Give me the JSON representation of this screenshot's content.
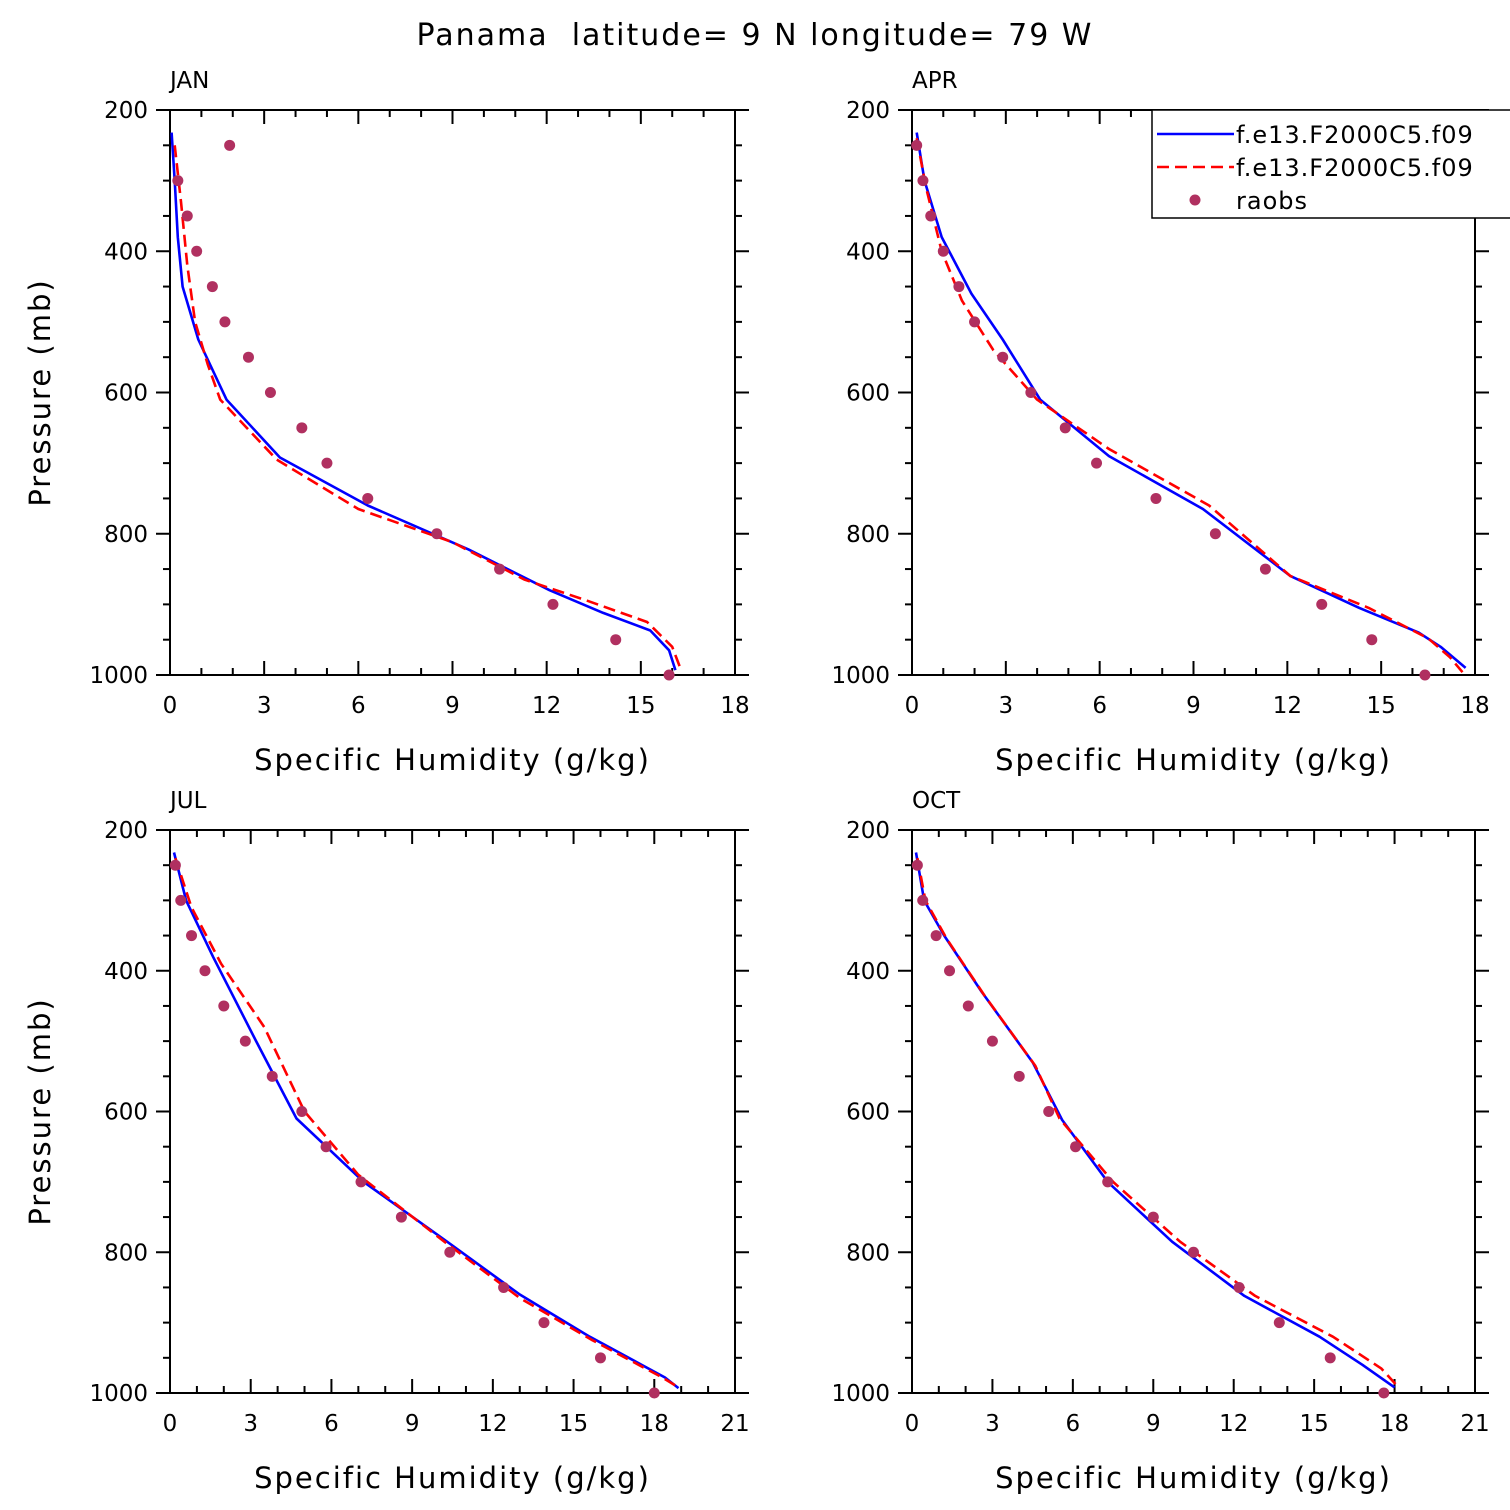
{
  "page": {
    "title": "Panama  latitude= 9 N longitude= 79 W"
  },
  "legend": {
    "placement": "top-right of APR panel",
    "entries": [
      {
        "label": "f.e13.F2000C5.f09",
        "color": "#0000ff",
        "style": "solid"
      },
      {
        "label": "f.e13.F2000C5.f09",
        "color": "#ff0000",
        "style": "dashed"
      },
      {
        "label": "raobs",
        "color": "#b03060",
        "style": "dot"
      }
    ]
  },
  "chart_data": [
    {
      "type": "line",
      "title": "JAN",
      "xlabel": "Specific Humidity (g/kg)",
      "ylabel": "Pressure (mb)",
      "xlim": [
        0,
        18
      ],
      "ylim": [
        1000,
        200
      ],
      "y_inverted": true,
      "xticks": [
        0,
        3,
        6,
        9,
        12,
        15,
        18
      ],
      "yticks": [
        200,
        400,
        600,
        800,
        1000
      ],
      "series": [
        {
          "name": "f.e13.F2000C5.f09",
          "color": "#0000ff",
          "style": "solid",
          "points": [
            [
              0.05,
              232
            ],
            [
              0.15,
              300
            ],
            [
              0.25,
              380
            ],
            [
              0.4,
              450
            ],
            [
              0.9,
              525
            ],
            [
              1.8,
              610
            ],
            [
              3.5,
              692
            ],
            [
              6.3,
              760
            ],
            [
              9.5,
              822
            ],
            [
              12.1,
              880
            ],
            [
              13.8,
              912
            ],
            [
              15.3,
              937
            ],
            [
              15.9,
              965
            ],
            [
              16.1,
              993
            ]
          ]
        },
        {
          "name": "f.e13.F2000C5.f09",
          "color": "#ff0000",
          "style": "dashed",
          "points": [
            [
              0.15,
              250
            ],
            [
              0.35,
              330
            ],
            [
              0.55,
              420
            ],
            [
              0.8,
              500
            ],
            [
              1.2,
              560
            ],
            [
              1.6,
              610
            ],
            [
              3.4,
              695
            ],
            [
              6.0,
              765
            ],
            [
              9.0,
              812
            ],
            [
              11.3,
              865
            ],
            [
              13.3,
              895
            ],
            [
              15.2,
              925
            ],
            [
              16.0,
              960
            ],
            [
              16.3,
              995
            ]
          ]
        },
        {
          "name": "raobs",
          "color": "#b03060",
          "style": "dot",
          "points": [
            [
              1.9,
              250
            ],
            [
              0.25,
              300
            ],
            [
              0.55,
              350
            ],
            [
              0.85,
              400
            ],
            [
              1.35,
              450
            ],
            [
              1.75,
              500
            ],
            [
              2.5,
              550
            ],
            [
              3.2,
              600
            ],
            [
              4.2,
              650
            ],
            [
              5.0,
              700
            ],
            [
              6.3,
              750
            ],
            [
              8.5,
              800
            ],
            [
              10.5,
              850
            ],
            [
              12.2,
              900
            ],
            [
              14.2,
              950
            ],
            [
              15.9,
              1000
            ]
          ]
        }
      ]
    },
    {
      "type": "line",
      "title": "APR",
      "xlabel": "Specific Humidity (g/kg)",
      "ylabel": "",
      "xlim": [
        0,
        18
      ],
      "ylim": [
        1000,
        200
      ],
      "y_inverted": true,
      "xticks": [
        0,
        3,
        6,
        9,
        12,
        15,
        18
      ],
      "yticks": [
        200,
        400,
        600,
        800,
        1000
      ],
      "series": [
        {
          "name": "f.e13.F2000C5.f09",
          "color": "#0000ff",
          "style": "solid",
          "points": [
            [
              0.15,
              232
            ],
            [
              0.4,
              300
            ],
            [
              0.95,
              380
            ],
            [
              1.9,
              460
            ],
            [
              2.9,
              525
            ],
            [
              4.1,
              610
            ],
            [
              6.3,
              690
            ],
            [
              9.3,
              765
            ],
            [
              12.1,
              860
            ],
            [
              14.3,
              905
            ],
            [
              16.2,
              940
            ],
            [
              16.9,
              960
            ],
            [
              17.7,
              990
            ]
          ]
        },
        {
          "name": "f.e13.F2000C5.f09",
          "color": "#ff0000",
          "style": "dashed",
          "points": [
            [
              0.15,
              240
            ],
            [
              0.45,
              310
            ],
            [
              0.95,
              400
            ],
            [
              1.6,
              470
            ],
            [
              2.6,
              540
            ],
            [
              4.0,
              610
            ],
            [
              6.3,
              680
            ],
            [
              9.5,
              760
            ],
            [
              12.1,
              860
            ],
            [
              14.6,
              905
            ],
            [
              16.5,
              948
            ],
            [
              17.2,
              975
            ],
            [
              17.6,
              996
            ]
          ]
        },
        {
          "name": "raobs",
          "color": "#b03060",
          "style": "dot",
          "points": [
            [
              0.15,
              250
            ],
            [
              0.35,
              300
            ],
            [
              0.6,
              350
            ],
            [
              1.0,
              400
            ],
            [
              1.5,
              450
            ],
            [
              2.0,
              500
            ],
            [
              2.9,
              550
            ],
            [
              3.8,
              600
            ],
            [
              4.9,
              650
            ],
            [
              5.9,
              700
            ],
            [
              7.8,
              750
            ],
            [
              9.7,
              800
            ],
            [
              11.3,
              850
            ],
            [
              13.1,
              900
            ],
            [
              14.7,
              950
            ],
            [
              16.4,
              1000
            ]
          ]
        }
      ]
    },
    {
      "type": "line",
      "title": "JUL",
      "xlabel": "Specific Humidity (g/kg)",
      "ylabel": "Pressure (mb)",
      "xlim": [
        0,
        21
      ],
      "ylim": [
        1000,
        200
      ],
      "y_inverted": true,
      "xticks": [
        0,
        3,
        6,
        9,
        12,
        15,
        18,
        21
      ],
      "yticks": [
        200,
        400,
        600,
        800,
        1000
      ],
      "series": [
        {
          "name": "f.e13.F2000C5.f09",
          "color": "#0000ff",
          "style": "solid",
          "points": [
            [
              0.15,
              232
            ],
            [
              0.6,
              300
            ],
            [
              1.6,
              380
            ],
            [
              3.2,
              500
            ],
            [
              4.7,
              610
            ],
            [
              7.2,
              700
            ],
            [
              10.3,
              785
            ],
            [
              13.0,
              860
            ],
            [
              15.6,
              920
            ],
            [
              18.4,
              978
            ],
            [
              18.9,
              993
            ]
          ]
        },
        {
          "name": "f.e13.F2000C5.f09",
          "color": "#ff0000",
          "style": "dashed",
          "points": [
            [
              0.2,
              240
            ],
            [
              0.8,
              310
            ],
            [
              1.9,
              390
            ],
            [
              3.5,
              480
            ],
            [
              5.0,
              600
            ],
            [
              7.0,
              690
            ],
            [
              10.2,
              785
            ],
            [
              13.0,
              865
            ],
            [
              15.7,
              925
            ],
            [
              18.3,
              978
            ],
            [
              18.9,
              992
            ]
          ]
        },
        {
          "name": "raobs",
          "color": "#b03060",
          "style": "dot",
          "points": [
            [
              0.2,
              250
            ],
            [
              0.4,
              300
            ],
            [
              0.8,
              350
            ],
            [
              1.3,
              400
            ],
            [
              2.0,
              450
            ],
            [
              2.8,
              500
            ],
            [
              3.8,
              550
            ],
            [
              4.9,
              600
            ],
            [
              5.8,
              650
            ],
            [
              7.1,
              700
            ],
            [
              8.6,
              750
            ],
            [
              10.4,
              800
            ],
            [
              12.4,
              850
            ],
            [
              13.9,
              900
            ],
            [
              16.0,
              950
            ],
            [
              18.0,
              1000
            ]
          ]
        }
      ]
    },
    {
      "type": "line",
      "title": "OCT",
      "xlabel": "Specific Humidity (g/kg)",
      "ylabel": "",
      "xlim": [
        0,
        21
      ],
      "ylim": [
        1000,
        200
      ],
      "y_inverted": true,
      "xticks": [
        0,
        3,
        6,
        9,
        12,
        15,
        18,
        21
      ],
      "yticks": [
        200,
        400,
        600,
        800,
        1000
      ],
      "series": [
        {
          "name": "f.e13.F2000C5.f09",
          "color": "#0000ff",
          "style": "solid",
          "points": [
            [
              0.15,
              232
            ],
            [
              0.45,
              300
            ],
            [
              1.2,
              350
            ],
            [
              2.6,
              430
            ],
            [
              4.5,
              530
            ],
            [
              5.6,
              612
            ],
            [
              7.3,
              700
            ],
            [
              9.7,
              785
            ],
            [
              12.4,
              862
            ],
            [
              15.2,
              920
            ],
            [
              16.8,
              960
            ],
            [
              18.0,
              992
            ]
          ]
        },
        {
          "name": "f.e13.F2000C5.f09",
          "color": "#ff0000",
          "style": "dashed",
          "points": [
            [
              0.2,
              240
            ],
            [
              0.5,
              300
            ],
            [
              1.3,
              355
            ],
            [
              2.7,
              435
            ],
            [
              4.6,
              535
            ],
            [
              5.5,
              610
            ],
            [
              7.5,
              700
            ],
            [
              10.0,
              785
            ],
            [
              12.8,
              862
            ],
            [
              15.7,
              920
            ],
            [
              17.5,
              965
            ],
            [
              18.1,
              990
            ]
          ]
        },
        {
          "name": "raobs",
          "color": "#b03060",
          "style": "dot",
          "points": [
            [
              0.2,
              250
            ],
            [
              0.4,
              300
            ],
            [
              0.9,
              350
            ],
            [
              1.4,
              400
            ],
            [
              2.1,
              450
            ],
            [
              3.0,
              500
            ],
            [
              4.0,
              550
            ],
            [
              5.1,
              600
            ],
            [
              6.1,
              650
            ],
            [
              7.3,
              700
            ],
            [
              9.0,
              750
            ],
            [
              10.5,
              800
            ],
            [
              12.2,
              850
            ],
            [
              13.7,
              900
            ],
            [
              15.6,
              950
            ],
            [
              17.6,
              1000
            ]
          ]
        }
      ]
    }
  ]
}
